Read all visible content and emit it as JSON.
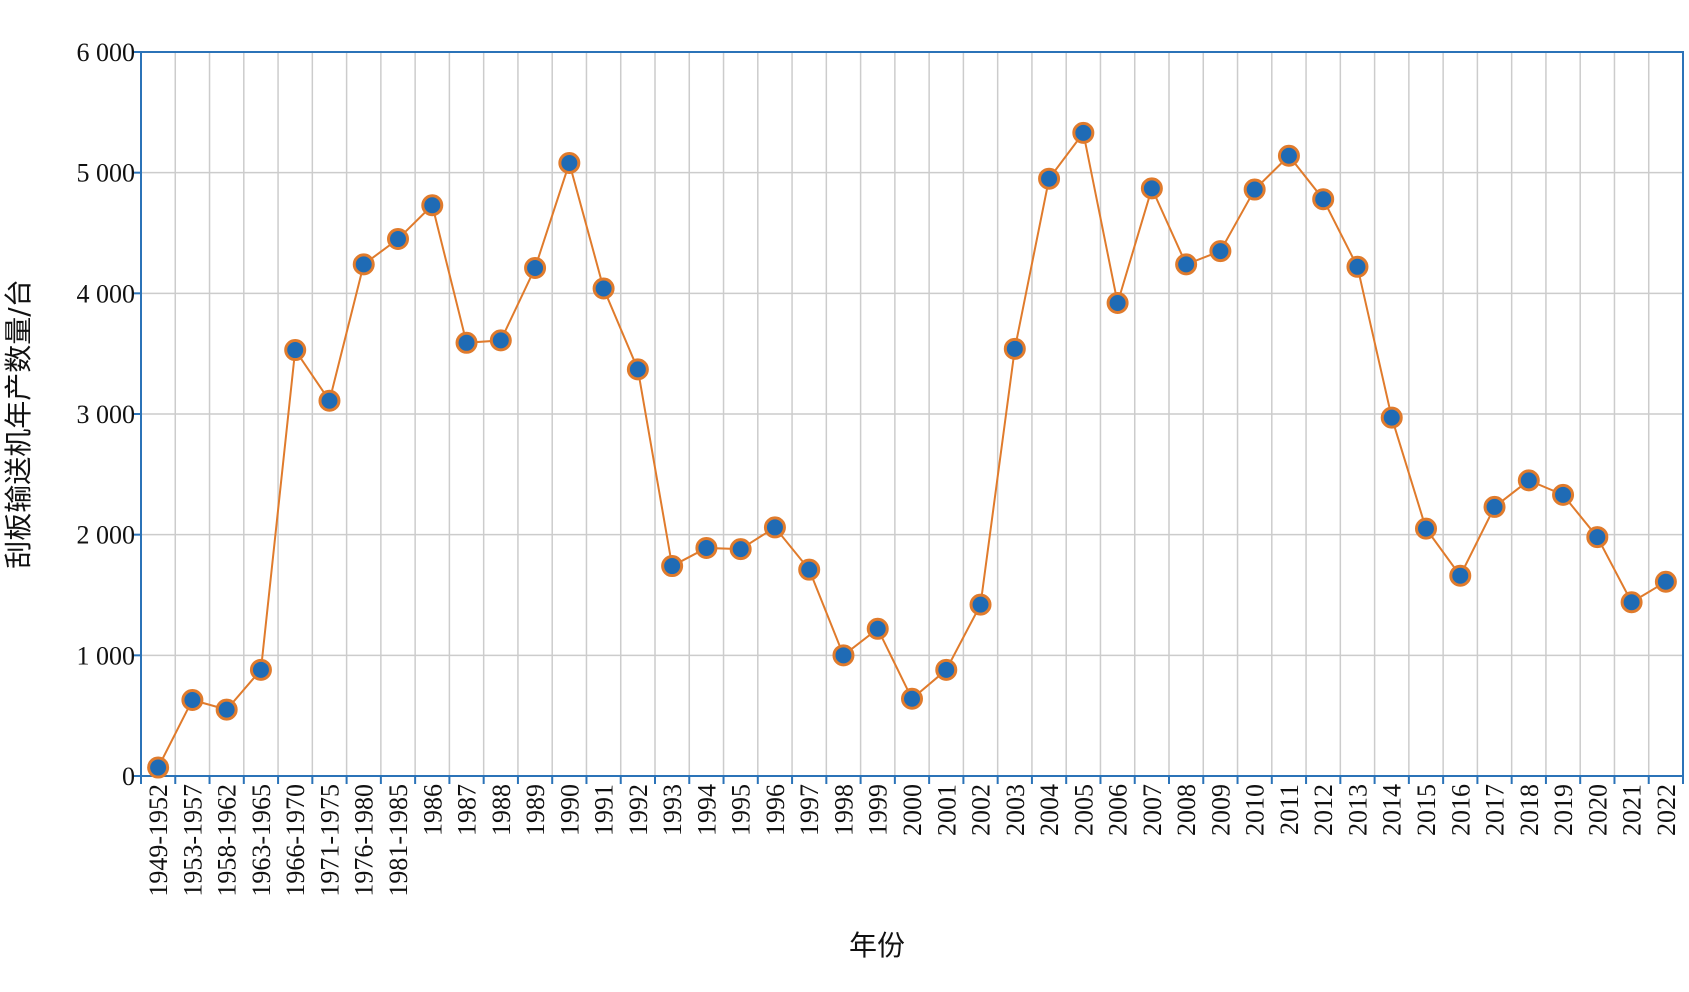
{
  "chart_data": {
    "type": "line",
    "xlabel": "年份",
    "ylabel": "刮板输送机年产数量/台",
    "ylim": [
      0,
      6000
    ],
    "yticks": [
      0,
      1000,
      2000,
      3000,
      4000,
      5000,
      6000
    ],
    "ytick_labels": [
      "0",
      "1 000",
      "2 000",
      "3 000",
      "4 000",
      "5 000",
      "6 000"
    ],
    "grid": true,
    "legend": "none",
    "colors": {
      "line": "#e07b2c",
      "marker_fill": "#1f6bb5",
      "marker_edge": "#e07b2c",
      "axis": "#2b73b8",
      "grid": "#cccccc"
    },
    "categories": [
      "1949-1952",
      "1953-1957",
      "1958-1962",
      "1963-1965",
      "1966-1970",
      "1971-1975",
      "1976-1980",
      "1981-1985",
      "1986",
      "1987",
      "1988",
      "1989",
      "1990",
      "1991",
      "1992",
      "1993",
      "1994",
      "1995",
      "1996",
      "1997",
      "1998",
      "1999",
      "2000",
      "2001",
      "2002",
      "2003",
      "2004",
      "2005",
      "2006",
      "2007",
      "2008",
      "2009",
      "2010",
      "2011",
      "2012",
      "2013",
      "2014",
      "2015",
      "2016",
      "2017",
      "2018",
      "2019",
      "2020",
      "2021",
      "2022"
    ],
    "series": [
      {
        "values": [
          70,
          630,
          550,
          880,
          3530,
          3110,
          4240,
          4450,
          4730,
          3590,
          3610,
          4210,
          5080,
          4040,
          3370,
          1740,
          1890,
          1880,
          2060,
          1710,
          1000,
          1220,
          640,
          880,
          1420,
          3540,
          4950,
          5330,
          3920,
          4870,
          4240,
          4350,
          4860,
          5140,
          4780,
          4220,
          2970,
          2050,
          1660,
          2230,
          2450,
          2330,
          1980,
          1440,
          1610
        ]
      }
    ]
  }
}
